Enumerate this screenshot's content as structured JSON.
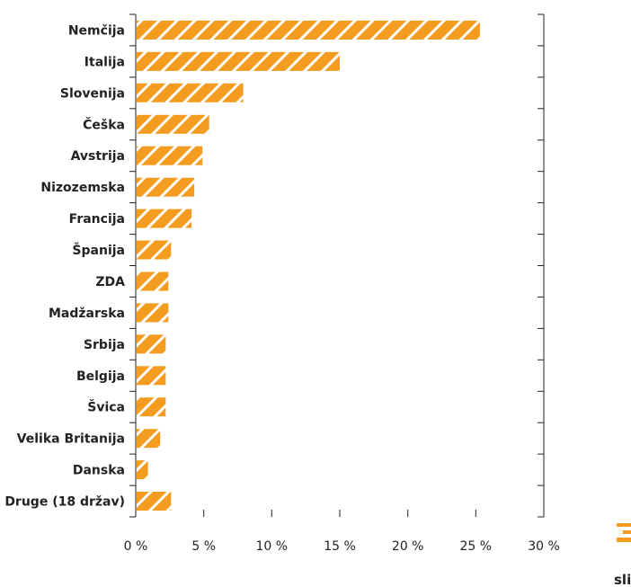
{
  "chart_data": {
    "type": "bar",
    "orientation": "horizontal",
    "categories": [
      "Nemčija",
      "Italija",
      "Slovenija",
      "Češka",
      "Avstrija",
      "Nizozemska",
      "Francija",
      "Španija",
      "ZDA",
      "Madžarska",
      "Srbija",
      "Belgija",
      "Švica",
      "Velika Britanija",
      "Danska",
      "Druge (18 držav)"
    ],
    "values": [
      25.3,
      15.0,
      7.9,
      5.4,
      4.9,
      4.3,
      4.1,
      2.6,
      2.4,
      2.4,
      2.2,
      2.2,
      2.2,
      1.8,
      0.9,
      2.6
    ],
    "xlim": [
      0,
      30
    ],
    "x_ticks": [
      0,
      5,
      10,
      15,
      20,
      25,
      30
    ],
    "x_tick_labels": [
      "0 %",
      "5 %",
      "10 %",
      "15 %",
      "20 %",
      "25 %",
      "30 %"
    ],
    "bar_color": "#f39c1f",
    "bar_pattern": "diagonal-hatch-white",
    "grid": false,
    "legend": "none"
  },
  "logo": {
    "text": "slik"
  }
}
